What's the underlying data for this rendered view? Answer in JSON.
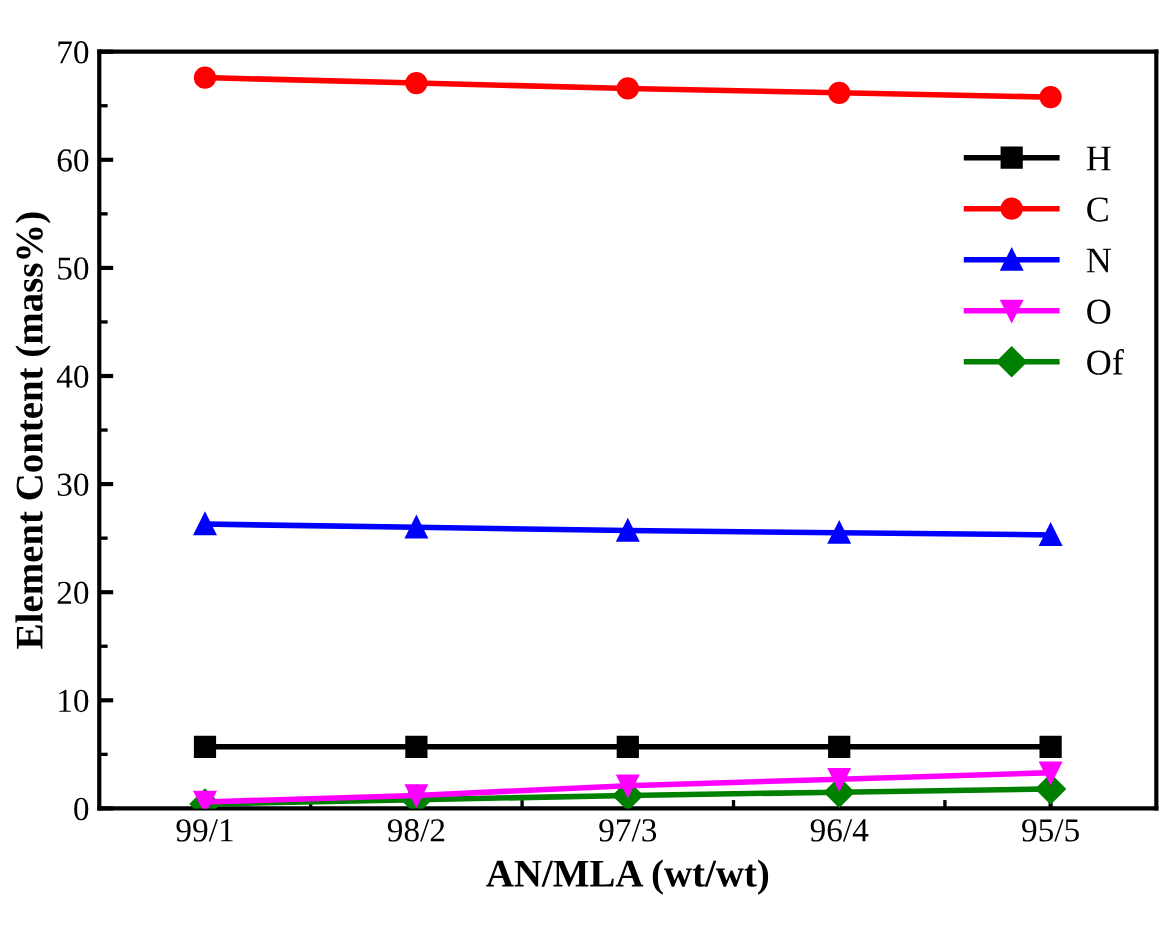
{
  "chart_data": {
    "type": "line",
    "xlabel": "AN/MLA (wt/wt)",
    "ylabel": "Element Content (mass%)",
    "categories": [
      "99/1",
      "98/2",
      "97/3",
      "96/4",
      "95/5"
    ],
    "ylim": [
      0,
      70
    ],
    "yticks": [
      0,
      10,
      20,
      30,
      40,
      50,
      60,
      70
    ],
    "grid": false,
    "legend": "right",
    "series": [
      {
        "name": "H",
        "color": "#000000",
        "marker": "square",
        "values": [
          5.7,
          5.7,
          5.7,
          5.7,
          5.7
        ]
      },
      {
        "name": "C",
        "color": "#ff0000",
        "marker": "circle",
        "values": [
          67.6,
          67.1,
          66.6,
          66.2,
          65.8
        ]
      },
      {
        "name": "N",
        "color": "#0000ff",
        "marker": "triangle",
        "values": [
          26.3,
          26.0,
          25.7,
          25.5,
          25.3
        ]
      },
      {
        "name": "O",
        "color": "#ff00ff",
        "marker": "triangle_down",
        "values": [
          0.6,
          1.2,
          2.1,
          2.7,
          3.3
        ]
      },
      {
        "name": "Of",
        "color": "#008000",
        "marker": "diamond",
        "values": [
          0.4,
          0.8,
          1.2,
          1.5,
          1.8
        ]
      }
    ]
  }
}
